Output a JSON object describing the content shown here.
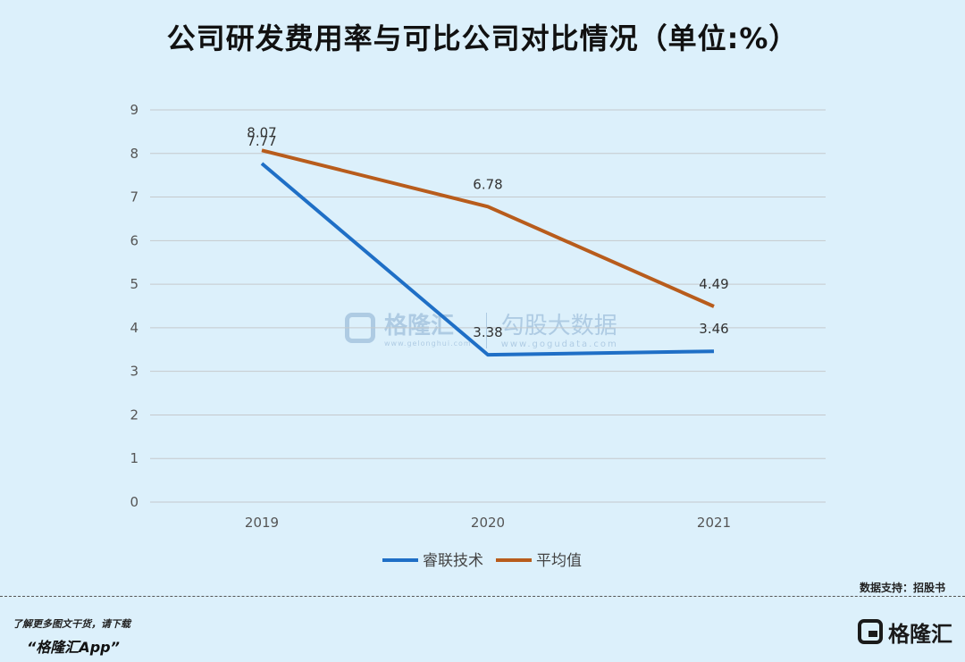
{
  "chart_data": {
    "type": "line",
    "title": "公司研发费用率与可比公司对比情况（单位:%）",
    "categories": [
      "2019",
      "2020",
      "2021"
    ],
    "series": [
      {
        "name": "睿联技术",
        "values": [
          7.77,
          3.38,
          3.46
        ],
        "color": "#1f6fc6"
      },
      {
        "name": "平均值",
        "values": [
          8.07,
          6.78,
          4.49
        ],
        "color": "#b85c1c"
      }
    ],
    "ylim": [
      0,
      9
    ],
    "yticks": [
      0,
      1,
      2,
      3,
      4,
      5,
      6,
      7,
      8,
      9
    ],
    "grid": true,
    "legend_position": "bottom",
    "data_labels": true
  },
  "source": "数据支持：招股书",
  "footer": {
    "promo_line": "了解更多图文干货，请下载",
    "app_name": "“格隆汇App”",
    "brand": "格隆汇"
  },
  "watermark": {
    "brand": "格隆汇",
    "url": "www.gelonghui.com",
    "partner": "勾股大数据",
    "partner_url": "www.gogudata.com"
  },
  "colors": {
    "background": "#dcf0fb",
    "grid": "#c5c9cc"
  }
}
